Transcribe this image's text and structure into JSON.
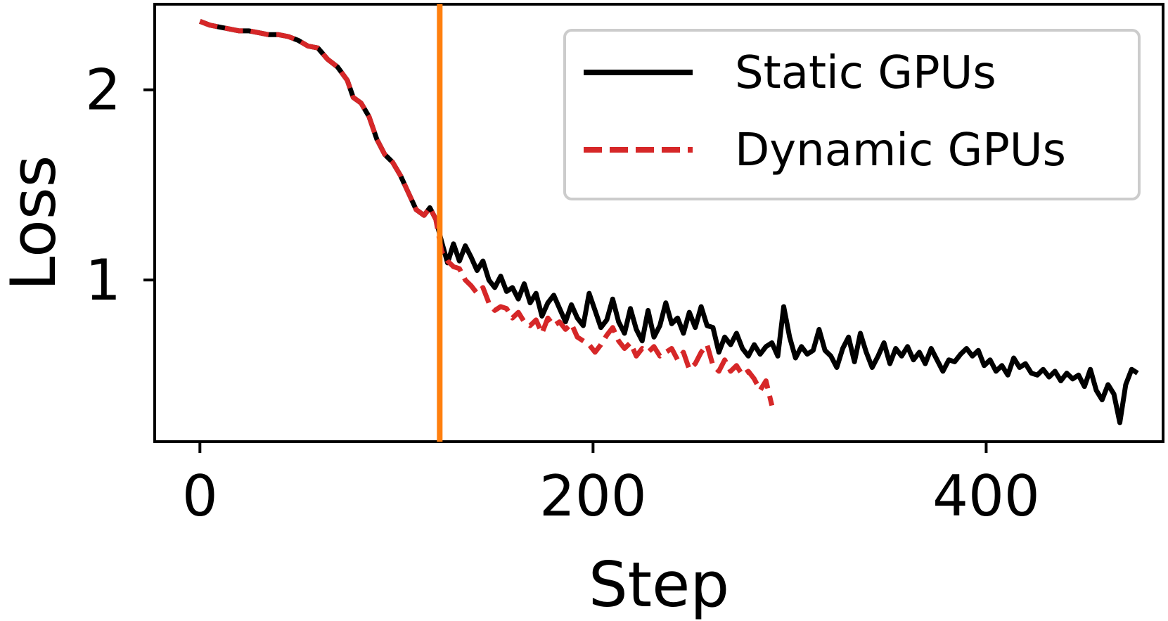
{
  "chart_data": {
    "type": "line",
    "xlabel": "Step",
    "ylabel": "Loss",
    "xlim": [
      -23,
      490
    ],
    "ylim": [
      0.15,
      2.45
    ],
    "xticks": [
      0,
      200,
      400
    ],
    "yticks": [
      1,
      2
    ],
    "grid": false,
    "legend_position": "top-right",
    "vline": {
      "x": 122,
      "color": "#ff7f0e"
    },
    "series": [
      {
        "name": "Static GPUs",
        "color": "#000000",
        "style": "solid",
        "points": [
          [
            0,
            2.36
          ],
          [
            5,
            2.34
          ],
          [
            10,
            2.33
          ],
          [
            15,
            2.32
          ],
          [
            20,
            2.31
          ],
          [
            25,
            2.31
          ],
          [
            30,
            2.3
          ],
          [
            35,
            2.29
          ],
          [
            40,
            2.29
          ],
          [
            45,
            2.28
          ],
          [
            50,
            2.26
          ],
          [
            55,
            2.23
          ],
          [
            60,
            2.22
          ],
          [
            65,
            2.16
          ],
          [
            70,
            2.12
          ],
          [
            75,
            2.05
          ],
          [
            78,
            1.96
          ],
          [
            82,
            1.93
          ],
          [
            86,
            1.86
          ],
          [
            90,
            1.74
          ],
          [
            94,
            1.66
          ],
          [
            98,
            1.62
          ],
          [
            102,
            1.55
          ],
          [
            106,
            1.46
          ],
          [
            110,
            1.37
          ],
          [
            114,
            1.34
          ],
          [
            117,
            1.38
          ],
          [
            120,
            1.32
          ],
          [
            123,
            1.2
          ],
          [
            126,
            1.09
          ],
          [
            129,
            1.19
          ],
          [
            132,
            1.1
          ],
          [
            135,
            1.18
          ],
          [
            138,
            1.12
          ],
          [
            141,
            1.05
          ],
          [
            144,
            1.1
          ],
          [
            147,
            1.0
          ],
          [
            150,
            0.96
          ],
          [
            153,
            1.02
          ],
          [
            156,
            0.94
          ],
          [
            159,
            0.96
          ],
          [
            162,
            0.9
          ],
          [
            165,
            0.98
          ],
          [
            168,
            0.88
          ],
          [
            171,
            0.93
          ],
          [
            174,
            0.81
          ],
          [
            177,
            0.88
          ],
          [
            180,
            0.92
          ],
          [
            183,
            0.85
          ],
          [
            186,
            0.78
          ],
          [
            189,
            0.87
          ],
          [
            192,
            0.8
          ],
          [
            195,
            0.76
          ],
          [
            198,
            0.93
          ],
          [
            201,
            0.84
          ],
          [
            204,
            0.75
          ],
          [
            207,
            0.79
          ],
          [
            210,
            0.9
          ],
          [
            213,
            0.78
          ],
          [
            216,
            0.72
          ],
          [
            219,
            0.85
          ],
          [
            222,
            0.74
          ],
          [
            225,
            0.68
          ],
          [
            228,
            0.84
          ],
          [
            231,
            0.7
          ],
          [
            234,
            0.76
          ],
          [
            237,
            0.88
          ],
          [
            240,
            0.77
          ],
          [
            243,
            0.8
          ],
          [
            246,
            0.72
          ],
          [
            249,
            0.83
          ],
          [
            252,
            0.75
          ],
          [
            255,
            0.86
          ],
          [
            258,
            0.76
          ],
          [
            261,
            0.75
          ],
          [
            264,
            0.62
          ],
          [
            267,
            0.7
          ],
          [
            270,
            0.66
          ],
          [
            273,
            0.72
          ],
          [
            276,
            0.64
          ],
          [
            279,
            0.6
          ],
          [
            282,
            0.66
          ],
          [
            285,
            0.61
          ],
          [
            288,
            0.65
          ],
          [
            291,
            0.67
          ],
          [
            294,
            0.6
          ],
          [
            297,
            0.86
          ],
          [
            300,
            0.7
          ],
          [
            303,
            0.59
          ],
          [
            306,
            0.65
          ],
          [
            309,
            0.61
          ],
          [
            312,
            0.63
          ],
          [
            315,
            0.74
          ],
          [
            318,
            0.63
          ],
          [
            321,
            0.6
          ],
          [
            324,
            0.54
          ],
          [
            327,
            0.64
          ],
          [
            330,
            0.7
          ],
          [
            333,
            0.57
          ],
          [
            336,
            0.72
          ],
          [
            339,
            0.62
          ],
          [
            342,
            0.54
          ],
          [
            345,
            0.6
          ],
          [
            348,
            0.67
          ],
          [
            351,
            0.56
          ],
          [
            354,
            0.64
          ],
          [
            357,
            0.6
          ],
          [
            360,
            0.65
          ],
          [
            363,
            0.58
          ],
          [
            366,
            0.62
          ],
          [
            369,
            0.56
          ],
          [
            372,
            0.64
          ],
          [
            375,
            0.58
          ],
          [
            378,
            0.52
          ],
          [
            381,
            0.58
          ],
          [
            384,
            0.57
          ],
          [
            387,
            0.61
          ],
          [
            390,
            0.64
          ],
          [
            393,
            0.6
          ],
          [
            396,
            0.63
          ],
          [
            399,
            0.55
          ],
          [
            402,
            0.58
          ],
          [
            405,
            0.52
          ],
          [
            408,
            0.55
          ],
          [
            411,
            0.5
          ],
          [
            414,
            0.59
          ],
          [
            417,
            0.54
          ],
          [
            420,
            0.56
          ],
          [
            423,
            0.51
          ],
          [
            426,
            0.5
          ],
          [
            429,
            0.53
          ],
          [
            432,
            0.49
          ],
          [
            435,
            0.52
          ],
          [
            438,
            0.47
          ],
          [
            441,
            0.51
          ],
          [
            444,
            0.48
          ],
          [
            447,
            0.5
          ],
          [
            450,
            0.44
          ],
          [
            453,
            0.53
          ],
          [
            456,
            0.42
          ],
          [
            459,
            0.37
          ],
          [
            462,
            0.45
          ],
          [
            465,
            0.4
          ],
          [
            468,
            0.25
          ],
          [
            471,
            0.45
          ],
          [
            474,
            0.53
          ],
          [
            477,
            0.51
          ]
        ]
      },
      {
        "name": "Dynamic GPUs",
        "color": "#d62728",
        "style": "dashed",
        "points": [
          [
            0,
            2.36
          ],
          [
            5,
            2.34
          ],
          [
            10,
            2.33
          ],
          [
            15,
            2.32
          ],
          [
            20,
            2.31
          ],
          [
            25,
            2.31
          ],
          [
            30,
            2.3
          ],
          [
            35,
            2.29
          ],
          [
            40,
            2.29
          ],
          [
            45,
            2.28
          ],
          [
            50,
            2.26
          ],
          [
            55,
            2.23
          ],
          [
            60,
            2.22
          ],
          [
            65,
            2.16
          ],
          [
            70,
            2.12
          ],
          [
            75,
            2.05
          ],
          [
            78,
            1.96
          ],
          [
            82,
            1.93
          ],
          [
            86,
            1.86
          ],
          [
            90,
            1.74
          ],
          [
            94,
            1.66
          ],
          [
            98,
            1.62
          ],
          [
            102,
            1.55
          ],
          [
            106,
            1.46
          ],
          [
            110,
            1.37
          ],
          [
            114,
            1.34
          ],
          [
            117,
            1.38
          ],
          [
            120,
            1.32
          ],
          [
            123,
            1.15
          ],
          [
            126,
            1.1
          ],
          [
            129,
            1.07
          ],
          [
            132,
            1.06
          ],
          [
            135,
            1.0
          ],
          [
            138,
            0.97
          ],
          [
            141,
            0.93
          ],
          [
            144,
            0.96
          ],
          [
            147,
            0.88
          ],
          [
            150,
            0.84
          ],
          [
            153,
            0.86
          ],
          [
            156,
            0.85
          ],
          [
            159,
            0.8
          ],
          [
            162,
            0.83
          ],
          [
            165,
            0.78
          ],
          [
            168,
            0.76
          ],
          [
            171,
            0.79
          ],
          [
            174,
            0.72
          ],
          [
            177,
            0.8
          ],
          [
            180,
            0.76
          ],
          [
            183,
            0.78
          ],
          [
            186,
            0.74
          ],
          [
            189,
            0.77
          ],
          [
            192,
            0.7
          ],
          [
            195,
            0.68
          ],
          [
            198,
            0.66
          ],
          [
            201,
            0.62
          ],
          [
            204,
            0.66
          ],
          [
            207,
            0.71
          ],
          [
            210,
            0.75
          ],
          [
            213,
            0.68
          ],
          [
            216,
            0.64
          ],
          [
            219,
            0.67
          ],
          [
            222,
            0.6
          ],
          [
            225,
            0.64
          ],
          [
            228,
            0.62
          ],
          [
            231,
            0.65
          ],
          [
            234,
            0.6
          ],
          [
            237,
            0.62
          ],
          [
            240,
            0.64
          ],
          [
            243,
            0.58
          ],
          [
            246,
            0.62
          ],
          [
            249,
            0.53
          ],
          [
            252,
            0.56
          ],
          [
            255,
            0.62
          ],
          [
            258,
            0.66
          ],
          [
            261,
            0.55
          ],
          [
            264,
            0.52
          ],
          [
            267,
            0.58
          ],
          [
            270,
            0.52
          ],
          [
            273,
            0.55
          ],
          [
            276,
            0.5
          ],
          [
            279,
            0.52
          ],
          [
            282,
            0.48
          ],
          [
            285,
            0.42
          ],
          [
            288,
            0.47
          ],
          [
            291,
            0.34
          ]
        ]
      }
    ]
  }
}
